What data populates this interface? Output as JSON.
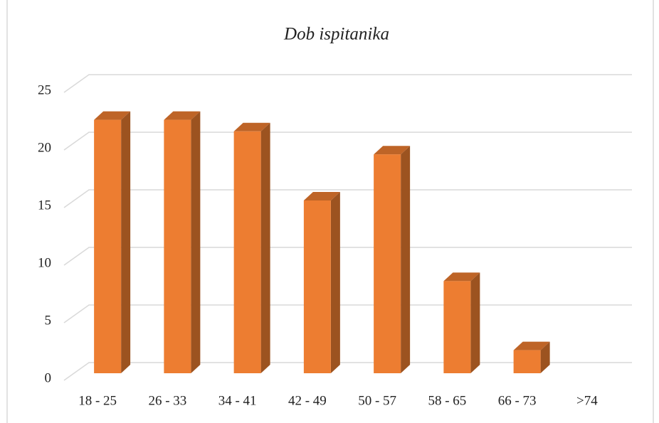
{
  "chart_data": {
    "type": "bar",
    "title": "Dob ispitanika",
    "categories": [
      "18 - 25",
      "26 - 33",
      "34 - 41",
      "42 - 49",
      "50 - 57",
      "58 - 65",
      "66 - 73",
      ">74"
    ],
    "values": [
      22,
      22,
      21,
      15,
      19,
      8,
      2,
      0
    ],
    "color": "#ed7d31",
    "ylim": [
      0,
      25
    ],
    "yticks": [
      0,
      5,
      10,
      15,
      20,
      25
    ],
    "grid": true
  }
}
